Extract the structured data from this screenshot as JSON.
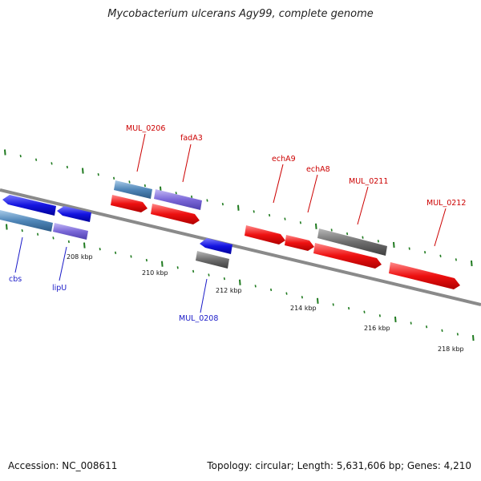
{
  "title": "Mycobacterium ulcerans Agy99, complete genome",
  "accession": "Accession: NC_008611",
  "summary": "Topology: circular; Length: 5,631,606 bp; Genes: 4,210",
  "colors": {
    "backbone": "#8c8c8c",
    "tick": "#1f7a1f",
    "forward_label": "#cc0000",
    "reverse_label": "#1a1ac8",
    "red": "#ee1111",
    "blue": "#1414e0",
    "steel": "#4f86b8",
    "lavender": "#7b68d8",
    "gray": "#6e6e6e"
  },
  "scale_labels": [
    "208 kbp",
    "210 kbp",
    "212 kbp",
    "214 kbp",
    "216 kbp",
    "218 kbp"
  ],
  "gene_labels": [
    {
      "text": "MUL_0206",
      "strand": "forward"
    },
    {
      "text": "fadA3",
      "strand": "forward"
    },
    {
      "text": "echA9",
      "strand": "forward"
    },
    {
      "text": "echA8",
      "strand": "forward"
    },
    {
      "text": "MUL_0211",
      "strand": "forward"
    },
    {
      "text": "MUL_0212",
      "strand": "forward"
    },
    {
      "text": "cbs",
      "strand": "reverse"
    },
    {
      "text": "lipU",
      "strand": "reverse"
    },
    {
      "text": "MUL_0208",
      "strand": "reverse"
    }
  ]
}
